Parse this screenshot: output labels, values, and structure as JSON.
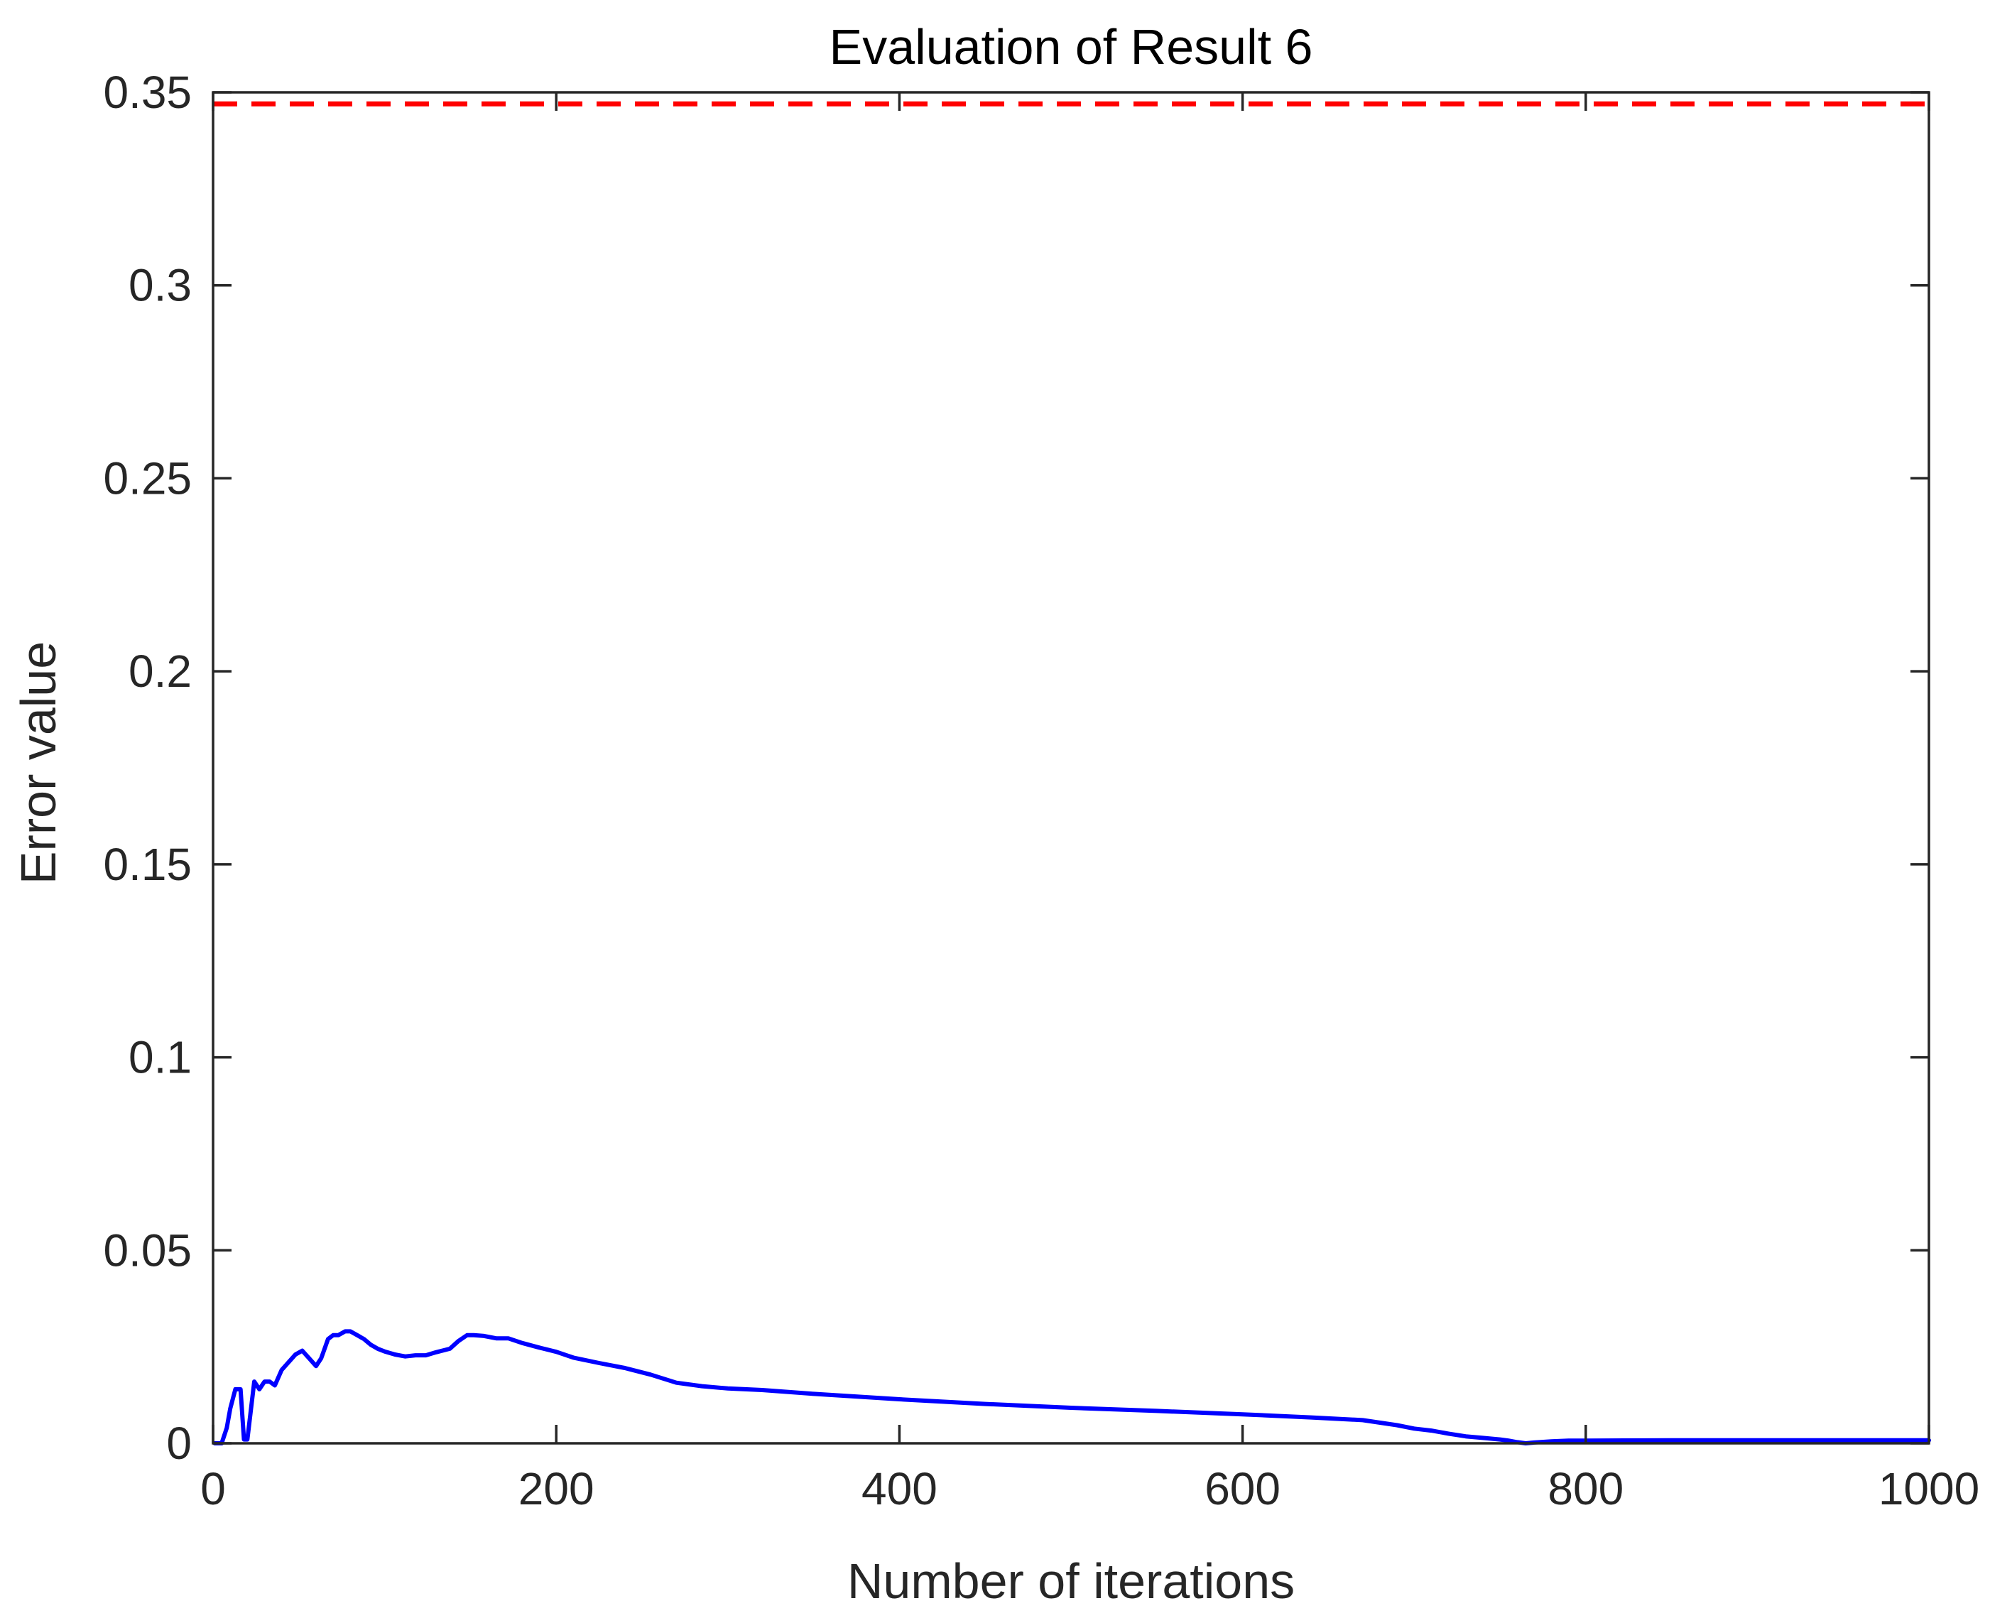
{
  "chart_data": {
    "type": "line",
    "title": "Evaluation of Result 6",
    "xlabel": "Number of iterations",
    "ylabel": "Error value",
    "xlim": [
      0,
      1000
    ],
    "ylim": [
      0,
      0.35
    ],
    "xticks": [
      0,
      200,
      400,
      600,
      800,
      1000
    ],
    "yticks": [
      0,
      0.05,
      0.1,
      0.15,
      0.2,
      0.25,
      0.3,
      0.35
    ],
    "xtick_labels": [
      "0",
      "200",
      "400",
      "600",
      "800",
      "1000"
    ],
    "ytick_labels": [
      "0",
      "0.05",
      "0.1",
      "0.15",
      "0.2",
      "0.25",
      "0.3",
      "0.35"
    ],
    "grid": false,
    "legend": "none",
    "threshold": {
      "y": 0.347,
      "style": "dashed",
      "color": "#ff0000"
    },
    "series": [
      {
        "color": "#0000ff",
        "x": [
          1,
          5,
          8,
          10,
          13,
          16,
          18,
          20,
          24,
          27,
          30,
          33,
          36,
          40,
          44,
          48,
          52,
          56,
          60,
          63,
          67,
          70,
          73,
          77,
          80,
          84,
          88,
          92,
          96,
          100,
          106,
          112,
          118,
          124,
          130,
          138,
          143,
          148,
          152,
          158,
          165,
          172,
          180,
          190,
          200,
          210,
          225,
          240,
          255,
          270,
          285,
          300,
          320,
          350,
          400,
          450,
          500,
          550,
          600,
          640,
          670,
          690,
          700,
          710,
          720,
          730,
          740,
          750,
          755,
          760,
          765,
          770,
          780,
          790,
          800,
          850,
          900,
          950,
          1000
        ],
        "y": [
          0,
          0,
          0.004,
          0.009,
          0.014,
          0.014,
          0.001,
          0.001,
          0.016,
          0.014,
          0.016,
          0.016,
          0.015,
          0.019,
          0.021,
          0.023,
          0.024,
          0.022,
          0.02,
          0.022,
          0.027,
          0.028,
          0.028,
          0.029,
          0.029,
          0.028,
          0.027,
          0.0255,
          0.0245,
          0.0238,
          0.023,
          0.0225,
          0.0228,
          0.0228,
          0.0236,
          0.0245,
          0.0265,
          0.028,
          0.028,
          0.0278,
          0.0272,
          0.0272,
          0.026,
          0.0248,
          0.0237,
          0.0222,
          0.0208,
          0.0195,
          0.0178,
          0.0157,
          0.0148,
          0.0142,
          0.0138,
          0.0128,
          0.0114,
          0.0102,
          0.0092,
          0.0084,
          0.0075,
          0.0067,
          0.006,
          0.0047,
          0.0038,
          0.0033,
          0.0025,
          0.0018,
          0.0014,
          0.001,
          0.0007,
          0.0003,
          0.0,
          0.0002,
          0.0005,
          0.0007,
          0.0007,
          0.0008,
          0.0008,
          0.0008,
          0.0008
        ]
      }
    ]
  }
}
